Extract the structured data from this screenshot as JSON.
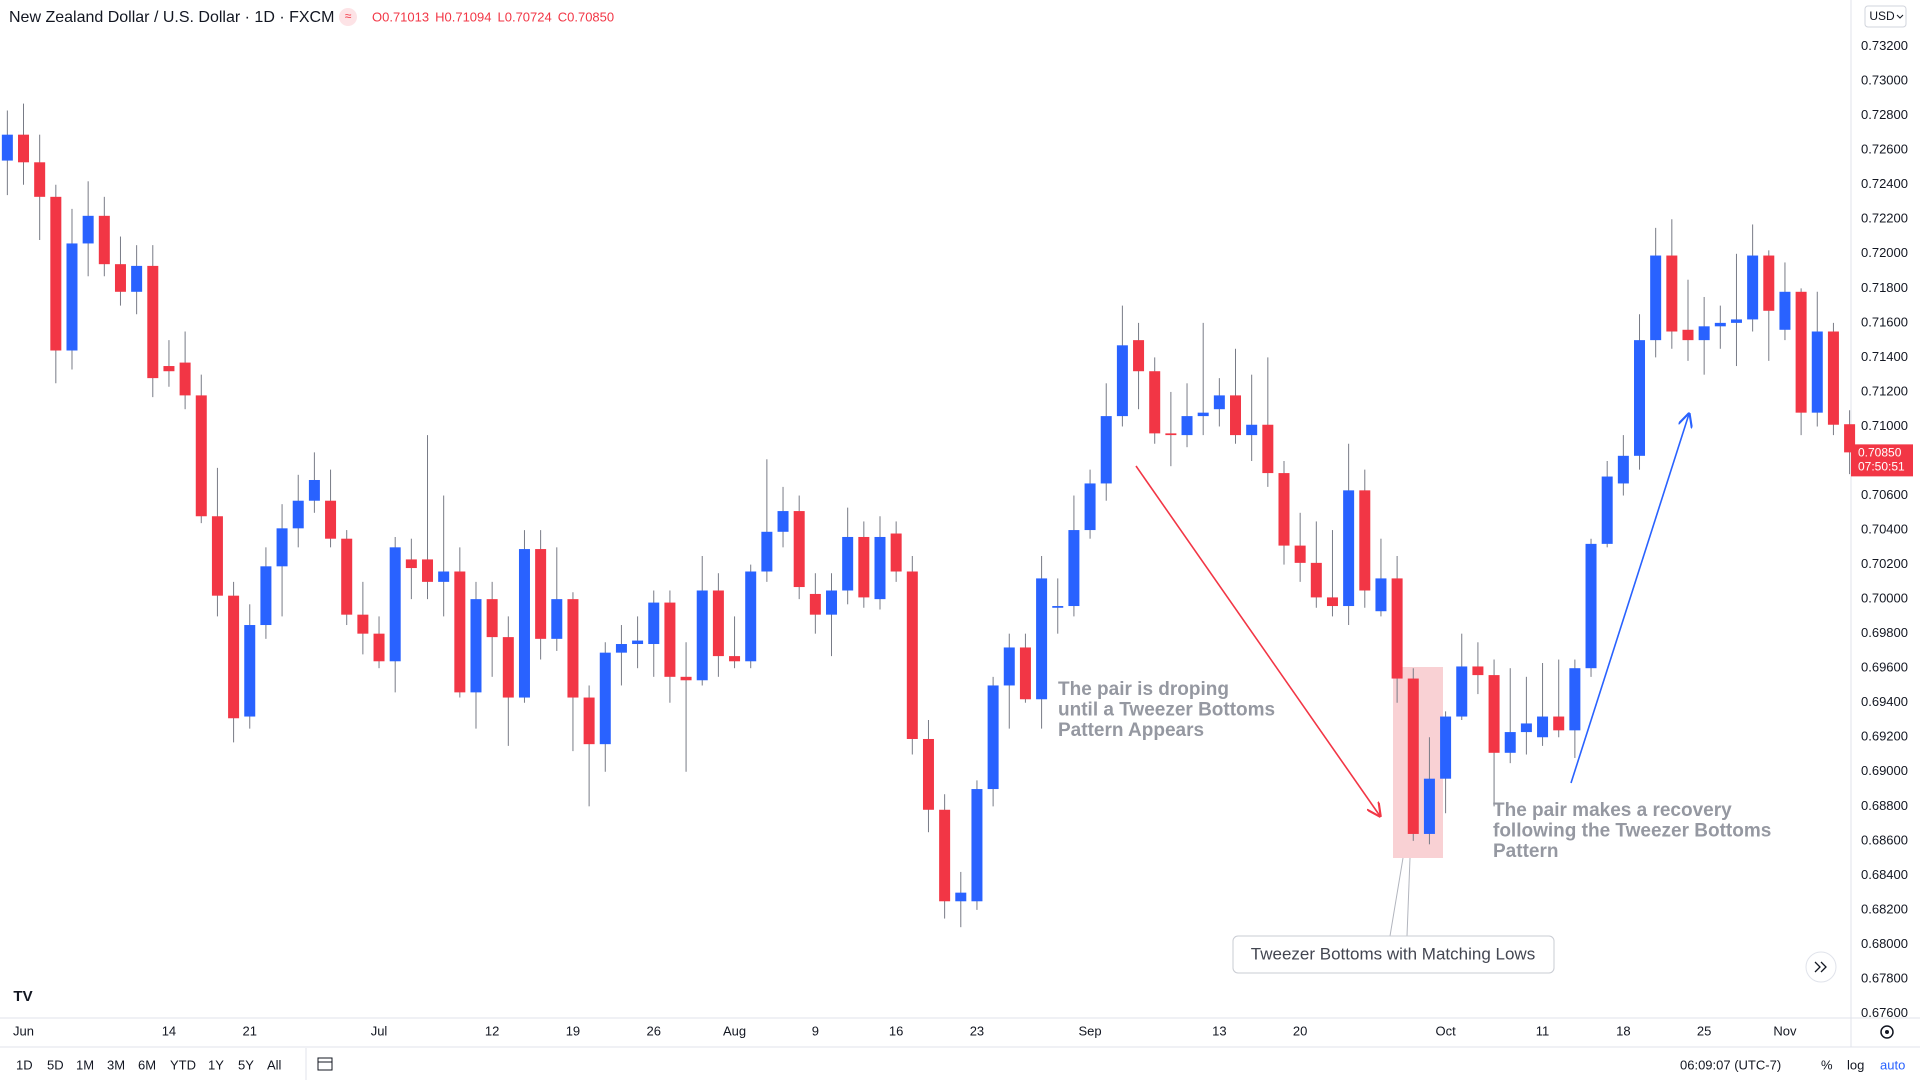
{
  "chart_data": {
    "type": "candlestick",
    "title": "New Zealand Dollar / U.S. Dollar · 1D · FXCM",
    "ohlc_labels": [
      "O0.71013",
      "H0.71094",
      "L0.70724",
      "C0.70850"
    ],
    "currency": "USD",
    "last_price_label": "0.70850",
    "countdown": "07:50:51",
    "up_color": "#2962ff",
    "down_color": "#f23645",
    "grid": false,
    "categories": [
      null,
      "Jun",
      null,
      null,
      null,
      null,
      null,
      null,
      null,
      null,
      "14",
      null,
      null,
      null,
      null,
      "21",
      null,
      null,
      null,
      null,
      null,
      null,
      null,
      "Jul",
      null,
      null,
      null,
      null,
      null,
      null,
      "12",
      null,
      null,
      null,
      null,
      "19",
      null,
      null,
      null,
      null,
      "26",
      null,
      null,
      null,
      null,
      "Aug",
      null,
      null,
      null,
      null,
      "9",
      null,
      null,
      null,
      null,
      "16",
      null,
      null,
      null,
      null,
      "23",
      null,
      null,
      null,
      null,
      null,
      null,
      "Sep",
      null,
      null,
      null,
      null,
      null,
      null,
      null,
      "13",
      null,
      null,
      null,
      null,
      "20",
      null,
      null,
      null,
      null,
      null,
      null,
      null,
      null,
      "Oct",
      null,
      null,
      null,
      null,
      null,
      "11",
      null,
      null,
      null,
      null,
      "18",
      null,
      null,
      null,
      null,
      "25",
      null,
      null,
      null,
      null,
      "Nov",
      null,
      null,
      null,
      null
    ],
    "open": [
      0.7254,
      0.7269,
      0.7253,
      0.7233,
      0.7144,
      0.7206,
      0.7222,
      0.7194,
      0.7178,
      0.7193,
      0.7135,
      0.7137,
      0.7118,
      0.7048,
      0.7002,
      0.6932,
      0.6985,
      0.7019,
      0.7041,
      0.7057,
      0.7057,
      0.7035,
      0.6991,
      0.698,
      0.6964,
      0.7023,
      0.7023,
      0.701,
      0.7016,
      0.6946,
      0.7,
      0.6978,
      0.6943,
      0.7029,
      0.6977,
      0.7,
      0.6943,
      0.6916,
      0.6969,
      0.6974,
      0.6974,
      0.6998,
      0.6955,
      0.6953,
      0.7005,
      0.6967,
      0.6964,
      0.7016,
      0.7039,
      0.7051,
      0.7003,
      0.6991,
      0.7005,
      0.7036,
      0.7,
      0.7038,
      0.7016,
      0.6919,
      0.6878,
      0.6825,
      0.6825,
      0.689,
      0.695,
      0.6972,
      0.6942,
      0.6995,
      0.6996,
      0.704,
      0.7067,
      0.7106,
      0.715,
      0.7132,
      0.7096,
      0.7095,
      0.7106,
      0.711,
      0.7118,
      0.7095,
      0.7101,
      0.7073,
      0.7031,
      0.7021,
      0.7001,
      0.6996,
      0.7063,
      0.6993,
      0.7012,
      0.6954,
      0.6864,
      0.6896,
      0.6932,
      0.6961,
      0.6956,
      0.6911,
      0.6923,
      0.692,
      0.6932,
      0.6924,
      0.696,
      0.7032,
      0.7067,
      0.7083,
      0.715,
      0.7199,
      0.7156,
      0.715,
      0.7158,
      0.716,
      0.7162,
      0.7199,
      0.7156,
      0.7178,
      0.7108,
      0.7155,
      0.71013
    ],
    "high": [
      0.7283,
      0.7287,
      0.7269,
      0.724,
      0.7226,
      0.7242,
      0.7233,
      0.721,
      0.7205,
      0.7205,
      0.715,
      0.7155,
      0.713,
      0.7076,
      0.701,
      0.6997,
      0.703,
      0.7055,
      0.7072,
      0.7085,
      0.7075,
      0.704,
      0.701,
      0.699,
      0.7036,
      0.7035,
      0.7095,
      0.706,
      0.703,
      0.701,
      0.701,
      0.699,
      0.704,
      0.704,
      0.703,
      0.7004,
      0.695,
      0.6975,
      0.6985,
      0.699,
      0.7005,
      0.7005,
      0.6975,
      0.7025,
      0.7015,
      0.699,
      0.702,
      0.7081,
      0.7065,
      0.706,
      0.7015,
      0.7015,
      0.7053,
      0.7045,
      0.7048,
      0.7045,
      0.7025,
      0.693,
      0.6887,
      0.6842,
      0.6895,
      0.6955,
      0.698,
      0.698,
      0.7025,
      0.7012,
      0.706,
      0.7075,
      0.7125,
      0.717,
      0.716,
      0.714,
      0.712,
      0.7125,
      0.716,
      0.7128,
      0.7145,
      0.713,
      0.714,
      0.708,
      0.705,
      0.7045,
      0.704,
      0.709,
      0.7075,
      0.7035,
      0.7025,
      0.696,
      0.692,
      0.6935,
      0.698,
      0.6975,
      0.6965,
      0.696,
      0.6955,
      0.6963,
      0.6965,
      0.6965,
      0.7035,
      0.708,
      0.7095,
      0.7165,
      0.7215,
      0.722,
      0.7185,
      0.7175,
      0.717,
      0.72,
      0.7217,
      0.7202,
      0.7195,
      0.718,
      0.7178,
      0.716,
      0.71094
    ],
    "low": [
      0.7234,
      0.724,
      0.7208,
      0.7125,
      0.7133,
      0.7187,
      0.7187,
      0.717,
      0.7165,
      0.7117,
      0.7123,
      0.711,
      0.7044,
      0.699,
      0.6917,
      0.6925,
      0.6977,
      0.699,
      0.703,
      0.705,
      0.703,
      0.6985,
      0.6968,
      0.696,
      0.6946,
      0.7,
      0.7,
      0.699,
      0.6943,
      0.6925,
      0.6955,
      0.6915,
      0.694,
      0.6965,
      0.697,
      0.6912,
      0.688,
      0.69,
      0.695,
      0.696,
      0.6955,
      0.694,
      0.69,
      0.695,
      0.6955,
      0.696,
      0.696,
      0.701,
      0.703,
      0.7,
      0.698,
      0.6967,
      0.6997,
      0.6995,
      0.6994,
      0.701,
      0.691,
      0.6865,
      0.6815,
      0.681,
      0.682,
      0.688,
      0.6925,
      0.694,
      0.6925,
      0.698,
      0.699,
      0.7035,
      0.7057,
      0.71,
      0.711,
      0.709,
      0.7077,
      0.7088,
      0.7095,
      0.71,
      0.709,
      0.708,
      0.7065,
      0.702,
      0.701,
      0.6995,
      0.699,
      0.6985,
      0.6995,
      0.699,
      0.694,
      0.686,
      0.6858,
      0.6876,
      0.693,
      0.6945,
      0.688,
      0.6905,
      0.691,
      0.6915,
      0.692,
      0.6908,
      0.6955,
      0.703,
      0.706,
      0.7075,
      0.714,
      0.7145,
      0.7138,
      0.713,
      0.7145,
      0.7135,
      0.7155,
      0.7138,
      0.715,
      0.7095,
      0.71,
      0.7095,
      0.70724
    ],
    "close": [
      0.7269,
      0.7253,
      0.7233,
      0.7144,
      0.7206,
      0.7222,
      0.7194,
      0.7178,
      0.7193,
      0.7128,
      0.7132,
      0.7118,
      0.7048,
      0.7002,
      0.6931,
      0.6985,
      0.7019,
      0.7041,
      0.7057,
      0.7069,
      0.7035,
      0.6991,
      0.698,
      0.6964,
      0.703,
      0.7018,
      0.701,
      0.7016,
      0.6946,
      0.7,
      0.6978,
      0.6943,
      0.7029,
      0.6977,
      0.7,
      0.6943,
      0.6916,
      0.6969,
      0.6974,
      0.6976,
      0.6998,
      0.6955,
      0.6953,
      0.7005,
      0.6967,
      0.6964,
      0.7016,
      0.7039,
      0.7051,
      0.7007,
      0.6991,
      0.7005,
      0.7036,
      0.7001,
      0.7036,
      0.7016,
      0.6919,
      0.6878,
      0.6825,
      0.683,
      0.689,
      0.695,
      0.6972,
      0.6942,
      0.7012,
      0.6996,
      0.704,
      0.7067,
      0.7106,
      0.7147,
      0.7132,
      0.7096,
      0.7095,
      0.7106,
      0.7108,
      0.7118,
      0.7095,
      0.7101,
      0.7073,
      0.7031,
      0.7021,
      0.7001,
      0.6996,
      0.7063,
      0.7005,
      0.7012,
      0.6954,
      0.6864,
      0.6896,
      0.6932,
      0.6961,
      0.6956,
      0.6911,
      0.6923,
      0.6928,
      0.6932,
      0.6924,
      0.696,
      0.7032,
      0.7071,
      0.7083,
      0.715,
      0.7199,
      0.7155,
      0.715,
      0.7158,
      0.716,
      0.7162,
      0.7199,
      0.7167,
      0.7178,
      0.7108,
      0.7155,
      0.7101,
      0.7085
    ],
    "ylim": [
      0.67574,
      0.7347
    ],
    "yticks": [
      {
        "value": 0.676,
        "label": "0.67600"
      },
      {
        "value": 0.678,
        "label": "0.67800"
      },
      {
        "value": 0.68,
        "label": "0.68000"
      },
      {
        "value": 0.682,
        "label": "0.68200"
      },
      {
        "value": 0.684,
        "label": "0.68400"
      },
      {
        "value": 0.686,
        "label": "0.68600"
      },
      {
        "value": 0.688,
        "label": "0.68800"
      },
      {
        "value": 0.69,
        "label": "0.69000"
      },
      {
        "value": 0.692,
        "label": "0.69200"
      },
      {
        "value": 0.694,
        "label": "0.69400"
      },
      {
        "value": 0.696,
        "label": "0.69600"
      },
      {
        "value": 0.698,
        "label": "0.69800"
      },
      {
        "value": 0.7,
        "label": "0.70000"
      },
      {
        "value": 0.702,
        "label": "0.70200"
      },
      {
        "value": 0.704,
        "label": "0.70400"
      },
      {
        "value": 0.706,
        "label": "0.70600"
      },
      {
        "value": 0.708,
        "label": "0.70800"
      },
      {
        "value": 0.71,
        "label": "0.71000"
      },
      {
        "value": 0.712,
        "label": "0.71200"
      },
      {
        "value": 0.714,
        "label": "0.71400"
      },
      {
        "value": 0.716,
        "label": "0.71600"
      },
      {
        "value": 0.718,
        "label": "0.71800"
      },
      {
        "value": 0.72,
        "label": "0.72000"
      },
      {
        "value": 0.722,
        "label": "0.72200"
      },
      {
        "value": 0.724,
        "label": "0.72400"
      },
      {
        "value": 0.726,
        "label": "0.72600"
      },
      {
        "value": 0.728,
        "label": "0.72800"
      },
      {
        "value": 0.73,
        "label": "0.73000"
      },
      {
        "value": 0.732,
        "label": "0.73200"
      }
    ],
    "annotations": [
      {
        "lines": [
          "The pair is droping",
          "until a Tweezer Bottoms",
          "Pattern Appears"
        ]
      },
      {
        "lines": [
          "The pair makes a recovery",
          "following the Tweezer Bottoms",
          "Pattern"
        ]
      }
    ],
    "callout": "Tweezer Bottoms with Matching Lows",
    "toolbar": {
      "ranges": [
        "1D",
        "5D",
        "1M",
        "3M",
        "6M",
        "YTD",
        "1Y",
        "5Y",
        "All"
      ],
      "clock": "06:09:07 (UTC-7)",
      "options": [
        "%",
        "log",
        "auto"
      ]
    }
  }
}
